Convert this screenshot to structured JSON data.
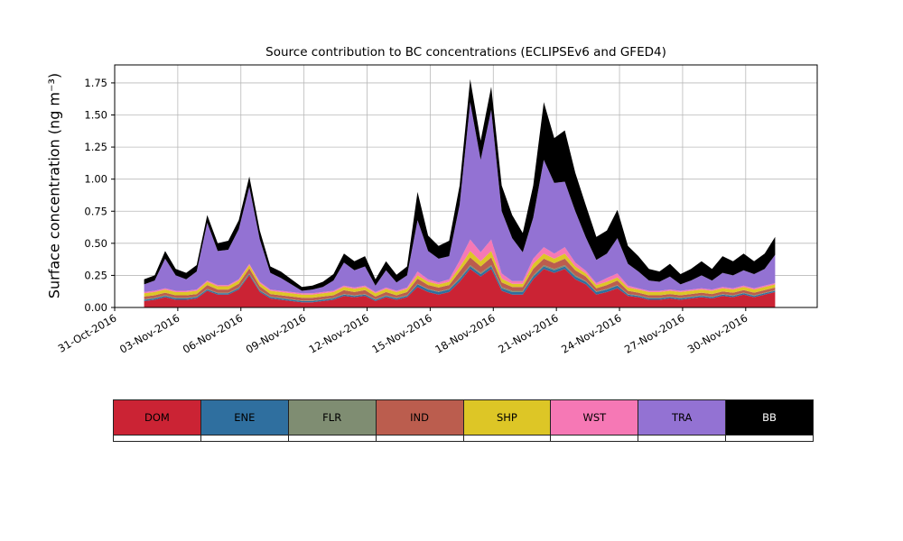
{
  "figure": {
    "title": "Source contribution to BC concentrations (ECLIPSEv6 and GFED4)",
    "ylabel": "Surface concentration (ng m⁻³)"
  },
  "chart_data": {
    "type": "area",
    "stacked": true,
    "title": "Source contribution to BC concentrations (ECLIPSEv6 and GFED4)",
    "xlabel": "",
    "ylabel": "Surface concentration (ng m⁻³)",
    "grid": true,
    "legend_position": "bottom",
    "ylim": [
      0,
      1.89
    ],
    "yticks": [
      0,
      0.25,
      0.5,
      0.75,
      1.0,
      1.25,
      1.5,
      1.75
    ],
    "ytick_labels": [
      "0.00",
      "0.25",
      "0.50",
      "0.75",
      "1.00",
      "1.25",
      "1.50",
      "1.75"
    ],
    "x_unit": "days since 31-Oct-2016",
    "xlim_days": [
      0,
      33.4
    ],
    "xticks_days": [
      0,
      3,
      6,
      9,
      12,
      15,
      18,
      21,
      24,
      27,
      30
    ],
    "xtick_labels": [
      "31-Oct-2016",
      "03-Nov-2016",
      "06-Nov-2016",
      "09-Nov-2016",
      "12-Nov-2016",
      "15-Nov-2016",
      "18-Nov-2016",
      "21-Nov-2016",
      "24-Nov-2016",
      "27-Nov-2016",
      "30-Nov-2016"
    ],
    "x_start": 1.4,
    "x_step": 0.5,
    "n_points": 61,
    "series": [
      {
        "name": "DOM",
        "color": "#cb2334",
        "values": [
          0.05,
          0.06,
          0.08,
          0.06,
          0.06,
          0.07,
          0.13,
          0.1,
          0.1,
          0.14,
          0.25,
          0.12,
          0.07,
          0.06,
          0.05,
          0.04,
          0.04,
          0.05,
          0.06,
          0.09,
          0.08,
          0.09,
          0.05,
          0.08,
          0.06,
          0.08,
          0.16,
          0.12,
          0.1,
          0.12,
          0.2,
          0.3,
          0.24,
          0.3,
          0.13,
          0.1,
          0.1,
          0.22,
          0.3,
          0.27,
          0.3,
          0.22,
          0.18,
          0.1,
          0.12,
          0.15,
          0.09,
          0.08,
          0.06,
          0.06,
          0.07,
          0.06,
          0.07,
          0.08,
          0.07,
          0.09,
          0.08,
          0.1,
          0.08,
          0.1,
          0.12
        ]
      },
      {
        "name": "ENE",
        "color": "#2f6f9f",
        "values": [
          0.01,
          0.01,
          0.01,
          0.01,
          0.01,
          0.01,
          0.01,
          0.01,
          0.01,
          0.01,
          0.01,
          0.01,
          0.01,
          0.01,
          0.01,
          0.01,
          0.01,
          0.01,
          0.01,
          0.01,
          0.01,
          0.01,
          0.01,
          0.01,
          0.01,
          0.01,
          0.02,
          0.02,
          0.02,
          0.02,
          0.02,
          0.02,
          0.02,
          0.02,
          0.02,
          0.02,
          0.02,
          0.02,
          0.02,
          0.02,
          0.02,
          0.02,
          0.02,
          0.02,
          0.02,
          0.02,
          0.01,
          0.01,
          0.01,
          0.01,
          0.01,
          0.01,
          0.01,
          0.01,
          0.01,
          0.01,
          0.01,
          0.01,
          0.01,
          0.01,
          0.01
        ]
      },
      {
        "name": "FLR",
        "color": "#7f8d72",
        "values": [
          0.005,
          0.005,
          0.005,
          0.005,
          0.005,
          0.005,
          0.005,
          0.005,
          0.005,
          0.005,
          0.005,
          0.005,
          0.005,
          0.005,
          0.005,
          0.005,
          0.005,
          0.005,
          0.005,
          0.005,
          0.005,
          0.005,
          0.005,
          0.005,
          0.005,
          0.005,
          0.005,
          0.005,
          0.005,
          0.005,
          0.01,
          0.01,
          0.01,
          0.01,
          0.01,
          0.01,
          0.01,
          0.01,
          0.01,
          0.01,
          0.01,
          0.01,
          0.005,
          0.005,
          0.005,
          0.005,
          0.005,
          0.005,
          0.005,
          0.005,
          0.005,
          0.005,
          0.005,
          0.005,
          0.005,
          0.005,
          0.005,
          0.005,
          0.005,
          0.005,
          0.005
        ]
      },
      {
        "name": "IND",
        "color": "#bb5d4e",
        "values": [
          0.02,
          0.02,
          0.02,
          0.02,
          0.02,
          0.02,
          0.03,
          0.025,
          0.025,
          0.03,
          0.04,
          0.03,
          0.02,
          0.02,
          0.02,
          0.02,
          0.02,
          0.02,
          0.02,
          0.03,
          0.025,
          0.03,
          0.02,
          0.025,
          0.02,
          0.025,
          0.04,
          0.03,
          0.03,
          0.03,
          0.05,
          0.06,
          0.05,
          0.06,
          0.035,
          0.03,
          0.03,
          0.05,
          0.05,
          0.045,
          0.05,
          0.04,
          0.035,
          0.025,
          0.03,
          0.035,
          0.025,
          0.02,
          0.02,
          0.02,
          0.02,
          0.02,
          0.02,
          0.02,
          0.02,
          0.02,
          0.02,
          0.02,
          0.02,
          0.02,
          0.02
        ]
      },
      {
        "name": "SHP",
        "color": "#ddc626",
        "values": [
          0.025,
          0.025,
          0.025,
          0.025,
          0.025,
          0.025,
          0.025,
          0.025,
          0.025,
          0.025,
          0.025,
          0.025,
          0.025,
          0.025,
          0.025,
          0.025,
          0.025,
          0.025,
          0.025,
          0.025,
          0.025,
          0.025,
          0.025,
          0.025,
          0.025,
          0.025,
          0.025,
          0.025,
          0.025,
          0.025,
          0.035,
          0.05,
          0.04,
          0.05,
          0.03,
          0.025,
          0.025,
          0.04,
          0.04,
          0.035,
          0.04,
          0.03,
          0.025,
          0.025,
          0.025,
          0.025,
          0.025,
          0.025,
          0.025,
          0.025,
          0.025,
          0.025,
          0.025,
          0.025,
          0.025,
          0.025,
          0.025,
          0.025,
          0.025,
          0.025,
          0.025
        ]
      },
      {
        "name": "WST",
        "color": "#f678b5",
        "values": [
          0.01,
          0.01,
          0.01,
          0.01,
          0.01,
          0.01,
          0.01,
          0.01,
          0.01,
          0.01,
          0.01,
          0.01,
          0.01,
          0.01,
          0.01,
          0.01,
          0.01,
          0.01,
          0.01,
          0.01,
          0.01,
          0.01,
          0.01,
          0.01,
          0.01,
          0.01,
          0.03,
          0.02,
          0.015,
          0.02,
          0.05,
          0.09,
          0.07,
          0.09,
          0.04,
          0.02,
          0.02,
          0.04,
          0.05,
          0.04,
          0.05,
          0.03,
          0.02,
          0.015,
          0.03,
          0.03,
          0.015,
          0.01,
          0.01,
          0.01,
          0.01,
          0.01,
          0.01,
          0.01,
          0.01,
          0.01,
          0.01,
          0.01,
          0.01,
          0.01,
          0.01
        ]
      },
      {
        "name": "TRA",
        "color": "#9372d3",
        "values": [
          0.06,
          0.08,
          0.23,
          0.12,
          0.09,
          0.14,
          0.45,
          0.265,
          0.275,
          0.39,
          0.6,
          0.33,
          0.13,
          0.1,
          0.06,
          0.02,
          0.03,
          0.04,
          0.08,
          0.18,
          0.135,
          0.15,
          0.05,
          0.135,
          0.065,
          0.095,
          0.4,
          0.22,
          0.185,
          0.18,
          0.435,
          1.07,
          0.72,
          1.01,
          0.485,
          0.335,
          0.225,
          0.32,
          0.68,
          0.55,
          0.51,
          0.4,
          0.26,
          0.18,
          0.19,
          0.275,
          0.17,
          0.13,
          0.08,
          0.07,
          0.1,
          0.05,
          0.07,
          0.1,
          0.07,
          0.11,
          0.1,
          0.12,
          0.11,
          0.13,
          0.22
        ]
      },
      {
        "name": "BB",
        "color": "#000000",
        "values": [
          0.04,
          0.04,
          0.06,
          0.05,
          0.05,
          0.05,
          0.06,
          0.06,
          0.07,
          0.07,
          0.08,
          0.07,
          0.05,
          0.05,
          0.04,
          0.03,
          0.03,
          0.04,
          0.05,
          0.07,
          0.07,
          0.08,
          0.05,
          0.07,
          0.06,
          0.07,
          0.22,
          0.12,
          0.1,
          0.12,
          0.15,
          0.18,
          0.15,
          0.18,
          0.2,
          0.18,
          0.15,
          0.25,
          0.45,
          0.35,
          0.4,
          0.3,
          0.25,
          0.18,
          0.18,
          0.22,
          0.14,
          0.12,
          0.09,
          0.08,
          0.1,
          0.08,
          0.09,
          0.11,
          0.09,
          0.13,
          0.11,
          0.13,
          0.1,
          0.12,
          0.14
        ]
      }
    ]
  },
  "legend": {
    "items": [
      "DOM",
      "ENE",
      "FLR",
      "IND",
      "SHP",
      "WST",
      "TRA",
      "BB"
    ]
  }
}
